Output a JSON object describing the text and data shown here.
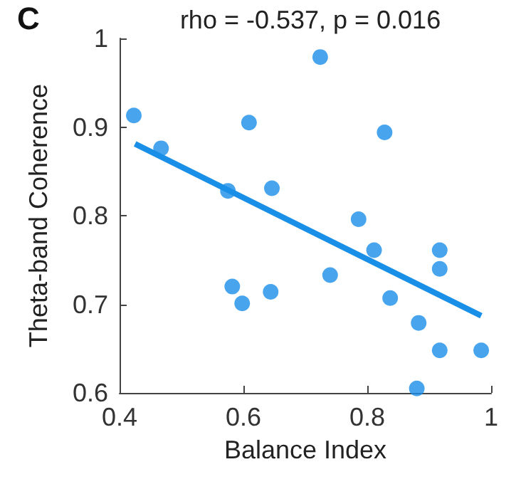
{
  "chart_data": {
    "type": "scatter",
    "title": "rho = -0.537, p = 0.016",
    "xlabel": "Balance Index",
    "ylabel": "Theta-band Coherence",
    "annotations": [
      "C"
    ],
    "xlim": [
      0.4,
      1
    ],
    "xticks": [
      0.4,
      0.6,
      0.8,
      1
    ],
    "ylim": [
      0.6,
      1
    ],
    "yticks": [
      0.6,
      0.7,
      0.8,
      0.9,
      1
    ],
    "grid": false,
    "marker": "circle",
    "series": [
      {
        "color": "#1a8fe8",
        "x": [
          0.423,
          0.467,
          0.575,
          0.609,
          0.646,
          0.724,
          0.828,
          0.786,
          0.811,
          0.74,
          0.582,
          0.598,
          0.644,
          0.837,
          0.917,
          0.917,
          0.883,
          0.917,
          0.984,
          0.88
        ],
        "values": [
          0.913,
          0.876,
          0.828,
          0.905,
          0.831,
          0.979,
          0.894,
          0.796,
          0.761,
          0.733,
          0.72,
          0.701,
          0.714,
          0.707,
          0.761,
          0.74,
          0.679,
          0.648,
          0.648,
          0.605
        ]
      },
      {
        "type": "line",
        "color": "#1a8fe8",
        "marker": "none",
        "line_style": "solid",
        "x": [
          0.425,
          0.984
        ],
        "values": [
          0.881,
          0.687
        ]
      }
    ]
  }
}
